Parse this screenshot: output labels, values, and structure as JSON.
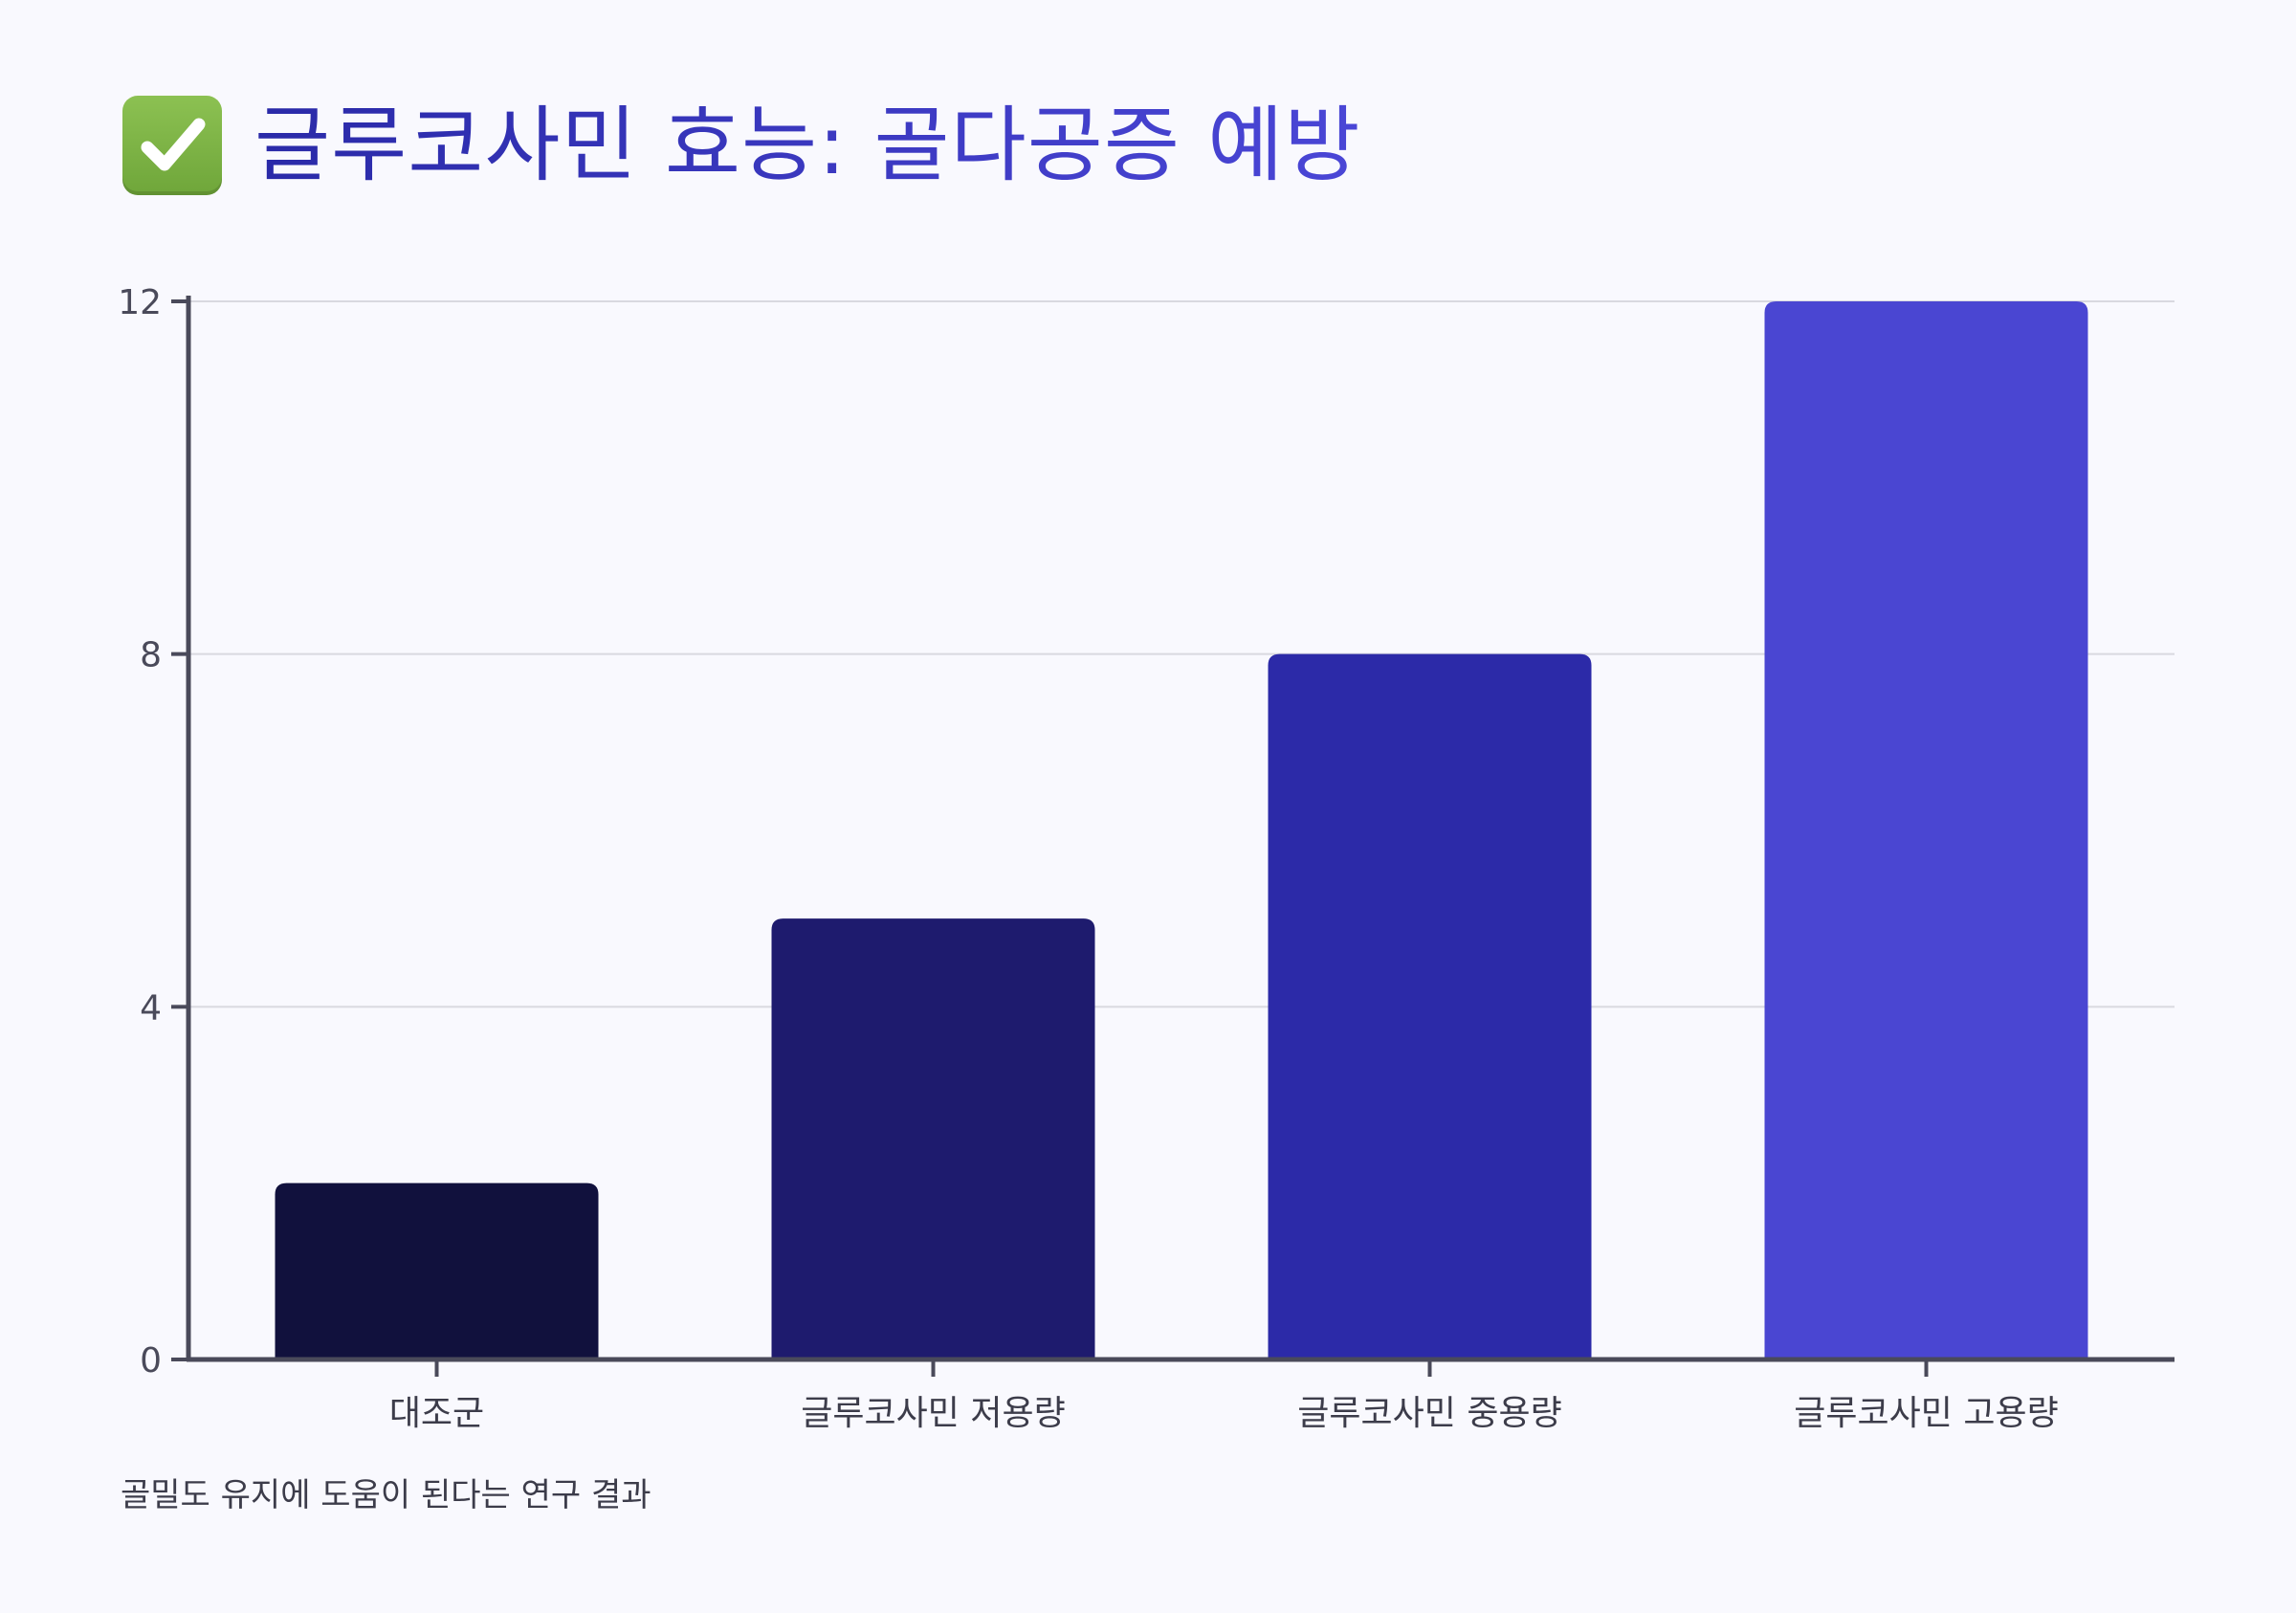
{
  "header": {
    "icon": "check-mark-button-icon",
    "title": "글루코사민 효능: 골다공증 예방"
  },
  "caption": "골밀도 유지에 도움이 된다는 연구 결과",
  "colors": {
    "background": "#f9f9fe",
    "axis": "#4a4a5a",
    "grid": "#d9d9e0",
    "bars": [
      "#11113d",
      "#1e1b6e",
      "#2c2aa8",
      "#4a46d2"
    ]
  },
  "chart_data": {
    "type": "bar",
    "title": "글루코사민 효능: 골다공증 예방",
    "categories": [
      "대조군",
      "글루코사민 저용량",
      "글루코사민 중용량",
      "글루코사민 고용량"
    ],
    "values": [
      2,
      5,
      8,
      12
    ],
    "xlabel": "",
    "ylabel": "",
    "ylim": [
      0,
      12
    ],
    "yticks": [
      0,
      4,
      8,
      12
    ],
    "grid": true,
    "legend": "none"
  }
}
